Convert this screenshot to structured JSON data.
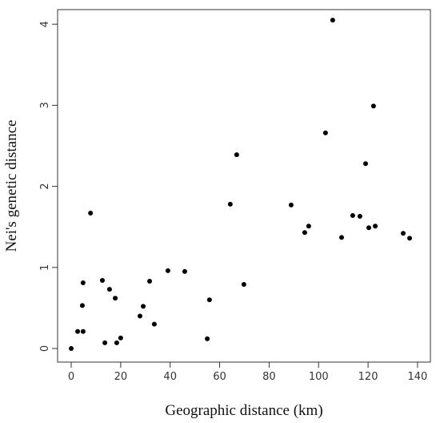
{
  "chart_data": {
    "type": "scatter",
    "x_label": "Geographic distance (km)",
    "y_label": "Nei's genetic distance",
    "color": "#000000",
    "xlim": [
      -5.5,
      145.2
    ],
    "ylim": [
      -0.168,
      4.18
    ],
    "xticks": [
      0,
      20,
      40,
      60,
      80,
      100,
      120,
      140
    ],
    "yticks": [
      0,
      1,
      2,
      3,
      4
    ],
    "x": [
      0,
      2.6,
      4.8,
      4.5,
      4.8,
      7.8,
      12.6,
      13.6,
      15.5,
      17.8,
      18.4,
      20.0,
      27.8,
      29.1,
      31.7,
      33.6,
      39.1,
      45.9,
      55.0,
      55.9,
      64.3,
      66.9,
      69.8,
      88.9,
      94.4,
      96.0,
      102.8,
      105.7,
      109.3,
      113.8,
      116.7,
      119.0,
      120.3,
      122.2,
      122.9,
      134.2,
      136.8
    ],
    "values": [
      0,
      0.21,
      0.21,
      0.53,
      0.81,
      1.67,
      0.84,
      0.07,
      0.73,
      0.62,
      0.07,
      0.13,
      0.4,
      0.52,
      0.83,
      0.3,
      0.96,
      0.95,
      0.12,
      0.6,
      1.78,
      2.39,
      0.79,
      1.77,
      1.43,
      1.51,
      2.66,
      4.05,
      1.37,
      1.64,
      1.63,
      2.28,
      1.49,
      2.99,
      1.51,
      1.42,
      1.36
    ]
  }
}
